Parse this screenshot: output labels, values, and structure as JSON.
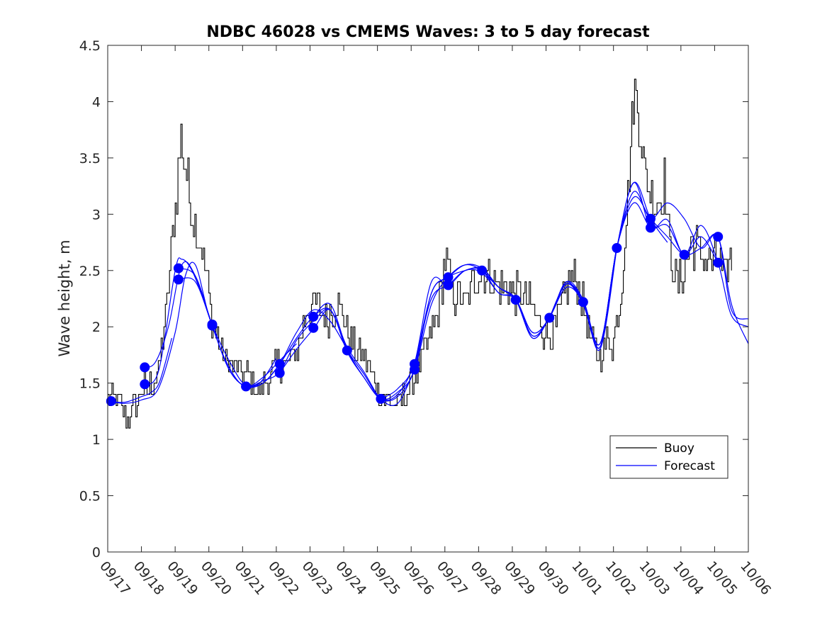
{
  "chart_data": {
    "type": "line",
    "title": "NDBC 46028 vs CMEMS Waves: 3 to 5 day forecast",
    "xlabel": "",
    "ylabel": "Wave height, m",
    "xlim": [
      "09/17",
      "10/06"
    ],
    "ylim": [
      0,
      4.5
    ],
    "x_tick_labels": [
      "09/17",
      "09/18",
      "09/19",
      "09/20",
      "09/21",
      "09/22",
      "09/23",
      "09/24",
      "09/25",
      "09/26",
      "09/27",
      "09/28",
      "09/29",
      "09/30",
      "10/01",
      "10/02",
      "10/03",
      "10/04",
      "10/05",
      "10/06"
    ],
    "y_ticks": [
      0,
      0.5,
      1,
      1.5,
      2,
      2.5,
      3,
      3.5,
      4,
      4.5
    ],
    "y_tick_labels": [
      "0",
      "0.5",
      "1",
      "1.5",
      "2",
      "2.5",
      "3",
      "3.5",
      "4",
      "4.5"
    ],
    "grid": false,
    "legend": {
      "placement": "bottom-right",
      "entries": [
        "Buoy",
        "Forecast"
      ]
    },
    "colors": {
      "buoy": "#000000",
      "forecast": "#0000ff"
    },
    "buoy_anchors": [
      [
        0.0,
        1.35
      ],
      [
        0.3,
        1.35
      ],
      [
        0.55,
        1.15
      ],
      [
        0.8,
        1.3
      ],
      [
        1.0,
        1.45
      ],
      [
        1.2,
        1.45
      ],
      [
        1.5,
        1.6
      ],
      [
        1.75,
        2.2
      ],
      [
        1.9,
        2.8
      ],
      [
        2.05,
        3.2
      ],
      [
        2.15,
        3.7
      ],
      [
        2.3,
        3.4
      ],
      [
        2.5,
        3.0
      ],
      [
        2.75,
        2.75
      ],
      [
        2.9,
        2.5
      ],
      [
        3.1,
        2.05
      ],
      [
        3.4,
        1.75
      ],
      [
        3.7,
        1.65
      ],
      [
        4.0,
        1.6
      ],
      [
        4.2,
        1.6
      ],
      [
        4.4,
        1.4
      ],
      [
        4.7,
        1.5
      ],
      [
        5.0,
        1.65
      ],
      [
        5.3,
        1.65
      ],
      [
        5.6,
        1.8
      ],
      [
        5.9,
        2.15
      ],
      [
        6.2,
        2.2
      ],
      [
        6.5,
        2.1
      ],
      [
        6.8,
        2.2
      ],
      [
        7.0,
        2.1
      ],
      [
        7.2,
        1.85
      ],
      [
        7.4,
        1.8
      ],
      [
        7.6,
        1.75
      ],
      [
        7.8,
        1.6
      ],
      [
        8.0,
        1.45
      ],
      [
        8.3,
        1.35
      ],
      [
        8.6,
        1.3
      ],
      [
        8.9,
        1.45
      ],
      [
        9.2,
        1.65
      ],
      [
        9.5,
        1.85
      ],
      [
        9.7,
        2.05
      ],
      [
        9.9,
        2.35
      ],
      [
        10.0,
        2.6
      ],
      [
        10.2,
        2.3
      ],
      [
        10.4,
        2.25
      ],
      [
        10.6,
        2.2
      ],
      [
        10.9,
        2.45
      ],
      [
        11.2,
        2.5
      ],
      [
        11.5,
        2.4
      ],
      [
        11.8,
        2.35
      ],
      [
        12.1,
        2.3
      ],
      [
        12.4,
        2.25
      ],
      [
        12.7,
        2.1
      ],
      [
        13.0,
        1.95
      ],
      [
        13.2,
        1.95
      ],
      [
        13.4,
        2.1
      ],
      [
        13.6,
        2.35
      ],
      [
        13.8,
        2.45
      ],
      [
        14.0,
        2.3
      ],
      [
        14.2,
        2.05
      ],
      [
        14.4,
        1.8
      ],
      [
        14.6,
        1.75
      ],
      [
        14.8,
        1.9
      ],
      [
        15.0,
        1.85
      ],
      [
        15.2,
        2.3
      ],
      [
        15.45,
        3.3
      ],
      [
        15.6,
        4.1
      ],
      [
        15.75,
        3.9
      ],
      [
        15.9,
        3.4
      ],
      [
        16.1,
        3.2
      ],
      [
        16.3,
        3.1
      ],
      [
        16.5,
        3.3
      ],
      [
        16.7,
        2.6
      ],
      [
        16.9,
        2.35
      ],
      [
        17.1,
        2.5
      ],
      [
        17.3,
        2.75
      ],
      [
        17.5,
        2.7
      ],
      [
        17.7,
        2.6
      ],
      [
        17.9,
        2.55
      ],
      [
        18.1,
        2.6
      ],
      [
        18.3,
        2.45
      ],
      [
        18.5,
        2.6
      ]
    ],
    "forecast_runs": [
      {
        "x": [
          0.0,
          0.5,
          1.0,
          1.5,
          2.0,
          2.3,
          2.6,
          3.0,
          3.5,
          4.0,
          4.5,
          5.0
        ],
        "y": [
          1.34,
          1.32,
          1.35,
          1.45,
          1.95,
          2.45,
          2.55,
          2.1,
          1.7,
          1.48,
          1.5,
          1.72
        ]
      },
      {
        "x": [
          0.0,
          0.5,
          1.0,
          1.3,
          1.55,
          1.9
        ],
        "y": [
          1.34,
          1.33,
          1.38,
          1.42,
          1.52,
          1.9
        ]
      },
      {
        "x": [
          1.0,
          1.4,
          1.8,
          2.2,
          2.6,
          3.1,
          3.6,
          4.1,
          4.6,
          5.1,
          5.6,
          6.1,
          6.6,
          7.1
        ],
        "y": [
          1.64,
          1.68,
          2.0,
          2.55,
          2.45,
          2.01,
          1.62,
          1.47,
          1.5,
          1.67,
          1.95,
          2.15,
          2.05,
          1.8
        ]
      },
      {
        "x": [
          1.0,
          1.5,
          2.0,
          2.2,
          2.5,
          2.9
        ],
        "y": [
          1.49,
          1.6,
          2.5,
          2.6,
          2.5,
          2.2
        ]
      },
      {
        "x": [
          2.1,
          2.6,
          3.1,
          3.6,
          4.1,
          4.6,
          5.1,
          5.6,
          6.1,
          6.6,
          7.1,
          7.6,
          8.1,
          8.6,
          9.1
        ],
        "y": [
          2.42,
          2.4,
          2.01,
          1.62,
          1.47,
          1.52,
          1.6,
          1.88,
          2.05,
          2.15,
          1.82,
          1.6,
          1.36,
          1.32,
          1.62
        ]
      },
      {
        "x": [
          2.1,
          2.6,
          3.1,
          3.6,
          4.1,
          4.6,
          5.1,
          5.6
        ],
        "y": [
          2.52,
          2.45,
          2.02,
          1.7,
          1.48,
          1.55,
          1.7,
          1.85
        ]
      },
      {
        "x": [
          4.1,
          4.6,
          5.1,
          5.6,
          6.1,
          6.6,
          7.1,
          7.6,
          8.1,
          8.6,
          9.1,
          9.6,
          10.1,
          10.6,
          11.1,
          11.6,
          12.1,
          12.6,
          13.1,
          13.6,
          14.1
        ],
        "y": [
          1.47,
          1.5,
          1.67,
          1.9,
          2.09,
          2.15,
          1.8,
          1.58,
          1.36,
          1.38,
          1.62,
          2.2,
          2.44,
          2.55,
          2.5,
          2.35,
          2.25,
          1.95,
          2.08,
          2.4,
          2.22
        ]
      },
      {
        "x": [
          5.1,
          5.6,
          6.1,
          6.6,
          7.1,
          7.6,
          8.1,
          8.6,
          9.1,
          9.6,
          10.1,
          10.6,
          11.1,
          11.6,
          12.1,
          12.6,
          13.1,
          13.6,
          14.1,
          14.6,
          15.1
        ],
        "y": [
          1.59,
          1.8,
          1.98,
          2.15,
          1.78,
          1.55,
          1.36,
          1.4,
          1.68,
          2.25,
          2.37,
          2.5,
          2.48,
          2.3,
          2.24,
          1.92,
          2.08,
          2.38,
          2.22,
          1.8,
          2.7
        ]
      },
      {
        "x": [
          6.1,
          6.6,
          7.1,
          7.6,
          8.1,
          8.6,
          9.1,
          9.6,
          10.1,
          10.6,
          11.1,
          11.6,
          12.1,
          12.6,
          13.1,
          13.6,
          14.1,
          14.6,
          15.1,
          15.6,
          16.1,
          16.6
        ],
        "y": [
          2.09,
          2.2,
          1.8,
          1.55,
          1.36,
          1.42,
          1.62,
          2.3,
          2.44,
          2.55,
          2.52,
          2.35,
          2.25,
          1.95,
          2.08,
          2.4,
          2.24,
          1.82,
          2.7,
          3.28,
          2.96,
          2.75
        ]
      },
      {
        "x": [
          8.1,
          8.6,
          9.1,
          9.6,
          10.1,
          10.6,
          11.1,
          11.6,
          12.1,
          12.6,
          13.1,
          13.6,
          14.1,
          14.6,
          15.1,
          15.6,
          16.1,
          16.6,
          17.1,
          17.6,
          18.1
        ],
        "y": [
          1.36,
          1.45,
          1.68,
          2.4,
          2.37,
          2.5,
          2.5,
          2.3,
          2.25,
          1.9,
          2.08,
          2.35,
          2.22,
          1.85,
          2.7,
          3.1,
          2.88,
          2.9,
          2.64,
          2.8,
          2.57
        ]
      },
      {
        "x": [
          9.1,
          9.6,
          10.1,
          10.6,
          11.1,
          11.6,
          12.1,
          12.6,
          13.1,
          13.6,
          14.1,
          14.6,
          15.1,
          15.6,
          16.1,
          16.6,
          17.1,
          17.6,
          18.1,
          18.5,
          19.0
        ],
        "y": [
          1.62,
          2.3,
          2.44,
          2.5,
          2.52,
          2.35,
          2.24,
          1.9,
          2.08,
          2.38,
          2.22,
          1.85,
          2.7,
          3.2,
          2.96,
          3.1,
          2.96,
          2.7,
          2.8,
          2.15,
          2.07
        ]
      },
      {
        "x": [
          11.1,
          11.6,
          12.1,
          12.6,
          13.1,
          13.6,
          14.1,
          14.6,
          15.1,
          15.6,
          16.1,
          16.6,
          17.1,
          17.6,
          18.1,
          18.5,
          19.0
        ],
        "y": [
          2.5,
          2.35,
          2.25,
          1.92,
          2.08,
          2.38,
          2.2,
          1.82,
          2.7,
          3.28,
          2.88,
          2.95,
          2.64,
          2.9,
          2.57,
          2.1,
          2.0
        ]
      },
      {
        "x": [
          13.1,
          13.6,
          14.1,
          14.6,
          15.1,
          15.6,
          16.1,
          16.6,
          17.1,
          17.6,
          18.1,
          18.5,
          19.0
        ],
        "y": [
          2.08,
          2.38,
          2.24,
          1.85,
          2.7,
          3.15,
          2.96,
          2.8,
          2.64,
          2.7,
          2.8,
          2.2,
          1.85
        ]
      }
    ],
    "markers": [
      [
        0.1,
        1.34
      ],
      [
        1.1,
        1.64
      ],
      [
        1.1,
        1.49
      ],
      [
        2.1,
        2.52
      ],
      [
        2.1,
        2.42
      ],
      [
        3.1,
        2.02
      ],
      [
        3.1,
        2.01
      ],
      [
        4.1,
        1.47
      ],
      [
        5.1,
        1.67
      ],
      [
        5.1,
        1.59
      ],
      [
        6.1,
        2.09
      ],
      [
        6.1,
        1.99
      ],
      [
        7.1,
        1.79
      ],
      [
        8.1,
        1.36
      ],
      [
        9.1,
        1.67
      ],
      [
        9.1,
        1.62
      ],
      [
        10.1,
        2.44
      ],
      [
        10.1,
        2.37
      ],
      [
        11.1,
        2.5
      ],
      [
        12.1,
        2.24
      ],
      [
        13.1,
        2.08
      ],
      [
        14.1,
        2.22
      ],
      [
        15.1,
        2.7
      ],
      [
        16.1,
        2.96
      ],
      [
        16.1,
        2.88
      ],
      [
        17.1,
        2.64
      ],
      [
        18.1,
        2.8
      ],
      [
        18.1,
        2.57
      ]
    ]
  }
}
